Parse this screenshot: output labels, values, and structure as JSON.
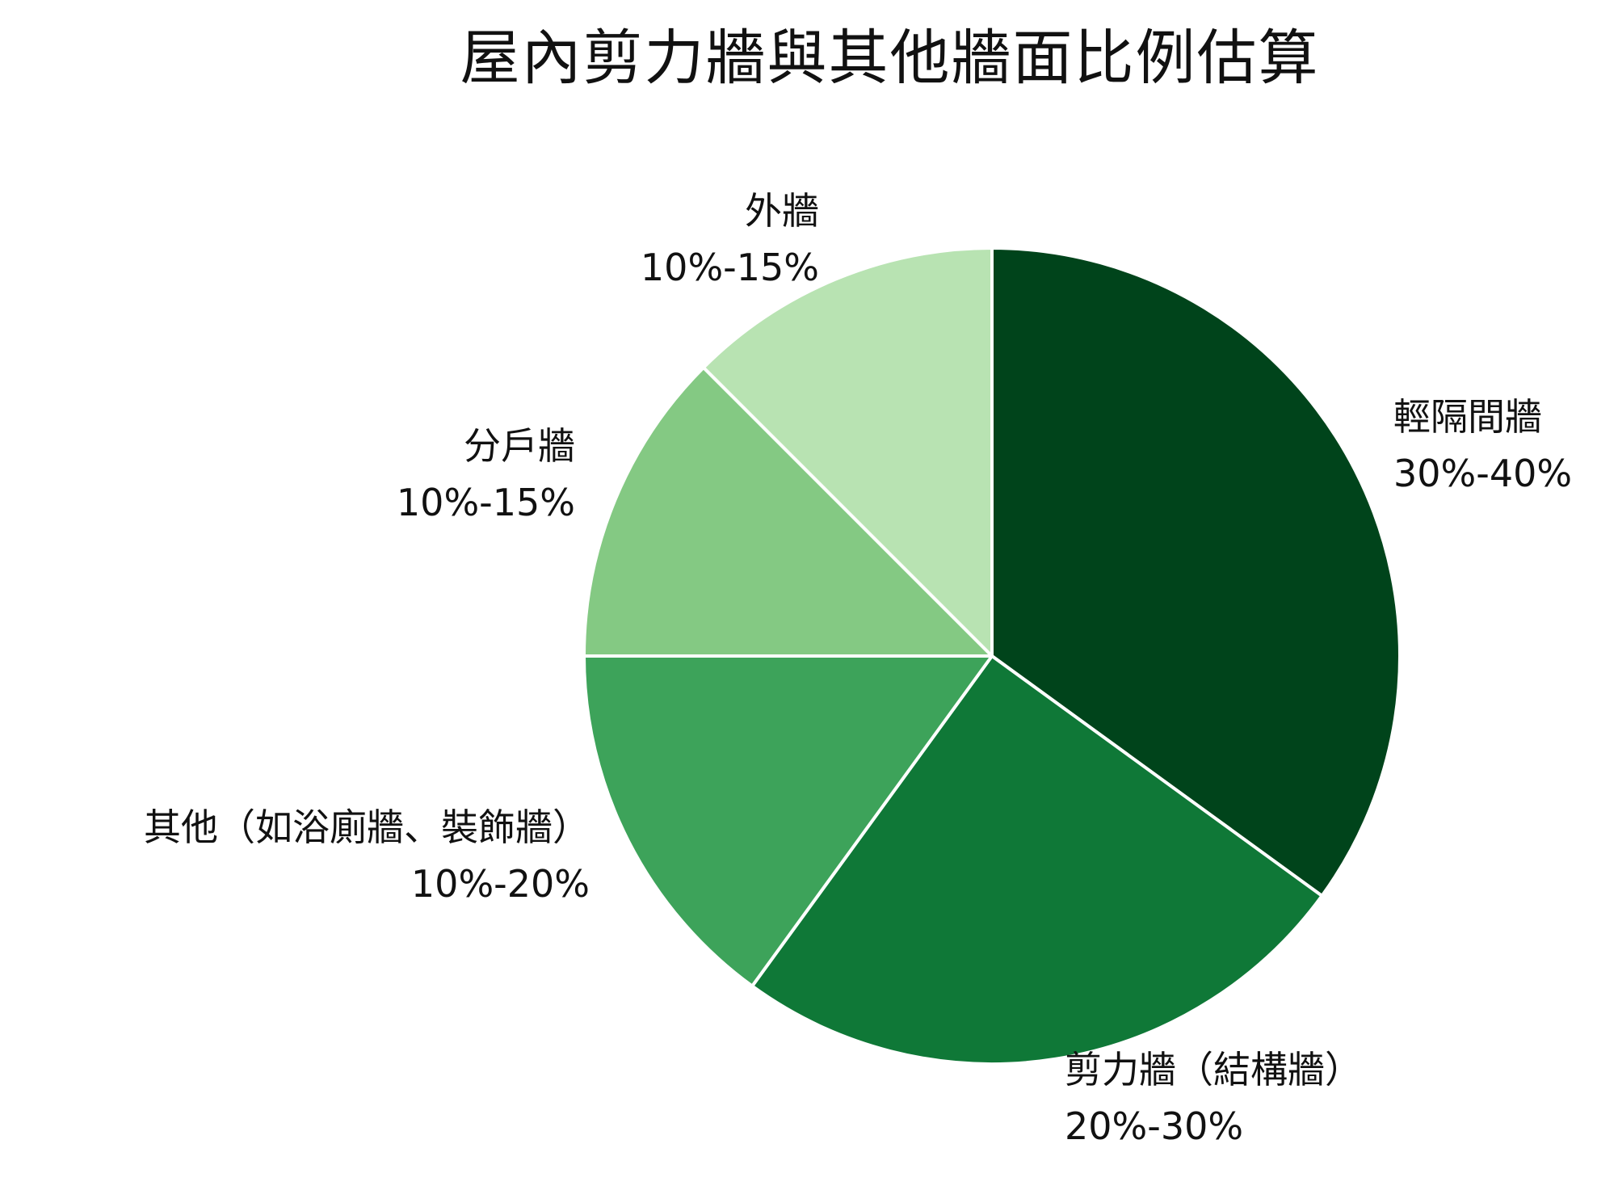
{
  "chart_data": {
    "type": "pie",
    "title": "屋內剪力牆與其他牆面比例估算",
    "start_angle_deg": 0,
    "direction": "clockwise",
    "slices": [
      {
        "name": "輕隔間牆",
        "range_label": "30%-40%",
        "value": 35,
        "color": "#00441b"
      },
      {
        "name": "剪力牆（結構牆）",
        "range_label": "20%-30%",
        "value": 25,
        "color": "#0f7837"
      },
      {
        "name": "其他（如浴廁牆、裝飾牆）",
        "range_label": "10%-20%",
        "value": 15,
        "color": "#3da35a"
      },
      {
        "name": "分戶牆",
        "range_label": "10%-15%",
        "value": 12.5,
        "color": "#84c983"
      },
      {
        "name": "外牆",
        "range_label": "10%-15%",
        "value": 12.5,
        "color": "#b8e3b2"
      }
    ],
    "edge_color": "#ffffff",
    "legend": "none"
  }
}
